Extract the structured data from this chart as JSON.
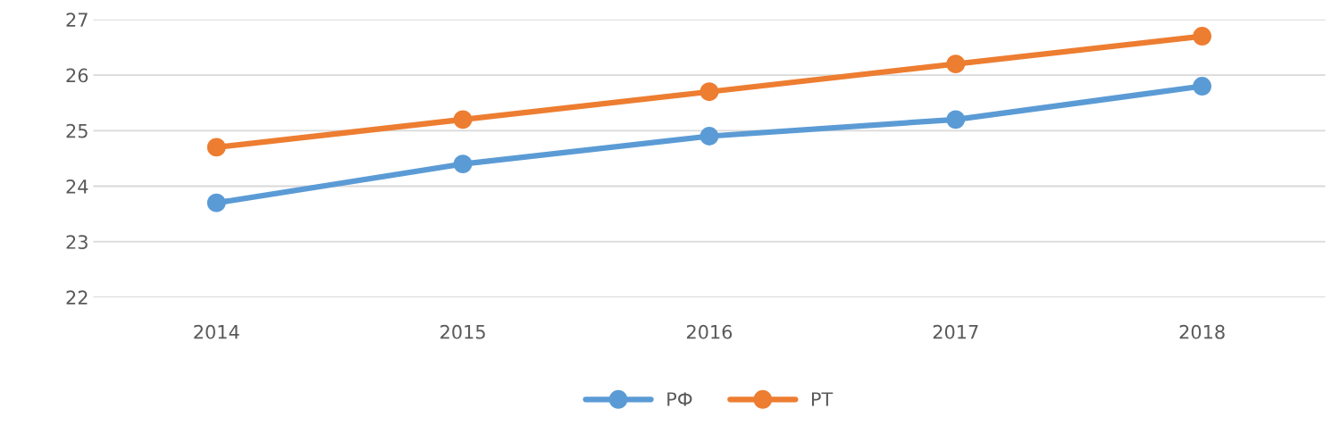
{
  "chart_data": {
    "type": "line",
    "categories": [
      "2014",
      "2015",
      "2016",
      "2017",
      "2018"
    ],
    "series": [
      {
        "name": "РФ",
        "color": "#5b9bd5",
        "values": [
          23.7,
          24.4,
          24.9,
          25.2,
          25.8
        ]
      },
      {
        "name": "РТ",
        "color": "#ed7d31",
        "values": [
          24.7,
          25.2,
          25.7,
          26.2,
          26.7
        ]
      }
    ],
    "ylim": [
      22,
      27
    ],
    "yticks": [
      22,
      23,
      24,
      25,
      26,
      27
    ],
    "grid": "y",
    "legend": "bottom",
    "marker": "circle",
    "line_style": "solid"
  }
}
